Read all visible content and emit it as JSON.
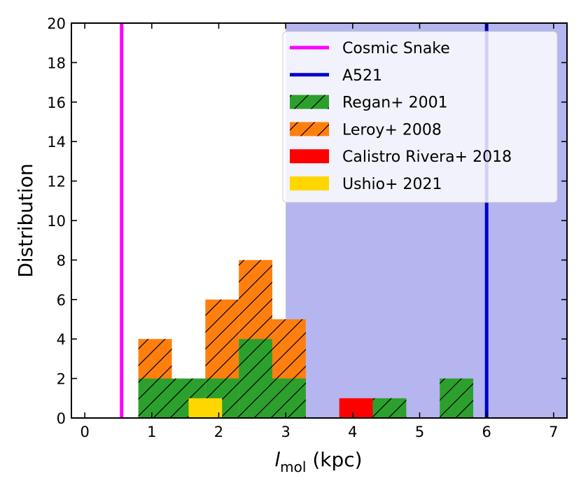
{
  "chart_data": {
    "type": "bar",
    "title": "",
    "xlabel": {
      "main": "l",
      "sub": "mol",
      "rest": " (kpc)"
    },
    "ylabel": "Distribution",
    "xlim": [
      -0.2,
      7.2
    ],
    "ylim": [
      0,
      20
    ],
    "xticks": [
      0,
      1,
      2,
      3,
      4,
      5,
      6,
      7
    ],
    "yticks": [
      0,
      2,
      4,
      6,
      8,
      10,
      12,
      14,
      16,
      18,
      20
    ],
    "bin_width": 0.5,
    "shaded_region": {
      "x_min": 3.0,
      "x_max": 7.2,
      "color": "#6b6be0",
      "opacity": 0.5
    },
    "vlines": [
      {
        "name": "Cosmic Snake",
        "x": 0.55,
        "color": "#ff00ff"
      },
      {
        "name": "A521",
        "x": 6.0,
        "color": "#0000cc"
      }
    ],
    "series": [
      {
        "name": "Leroy+ 2008",
        "color": "#ff7f0e",
        "hatch": true,
        "bars": [
          {
            "x": 0.8,
            "value": 4
          },
          {
            "x": 1.8,
            "value": 6
          },
          {
            "x": 2.3,
            "value": 8
          },
          {
            "x": 2.8,
            "value": 5
          }
        ]
      },
      {
        "name": "Regan+ 2001",
        "color": "#2ca02c",
        "hatch": true,
        "bars": [
          {
            "x": 0.8,
            "value": 2
          },
          {
            "x": 1.3,
            "value": 2
          },
          {
            "x": 1.8,
            "value": 2
          },
          {
            "x": 2.3,
            "value": 4
          },
          {
            "x": 2.8,
            "value": 2
          },
          {
            "x": 4.3,
            "value": 1
          },
          {
            "x": 5.3,
            "value": 2
          }
        ]
      },
      {
        "name": "Calistro Rivera+ 2018",
        "color": "#ff0000",
        "hatch": false,
        "bars": [
          {
            "x": 3.8,
            "value": 1
          }
        ]
      },
      {
        "name": "Ushio+ 2021",
        "color": "#ffd700",
        "hatch": false,
        "bars": [
          {
            "x": 1.55,
            "value": 1
          }
        ]
      }
    ],
    "legend": {
      "location": "top-right",
      "entries": [
        {
          "label": "Cosmic Snake",
          "kind": "line",
          "color": "#ff00ff"
        },
        {
          "label": "A521",
          "kind": "line",
          "color": "#0000cc"
        },
        {
          "label": "Regan+ 2001",
          "kind": "patch",
          "color": "#2ca02c",
          "hatch": true
        },
        {
          "label": "Leroy+ 2008",
          "kind": "patch",
          "color": "#ff7f0e",
          "hatch": true
        },
        {
          "label": "Calistro Rivera+ 2018",
          "kind": "patch",
          "color": "#ff0000",
          "hatch": false
        },
        {
          "label": "Ushio+ 2021",
          "kind": "patch",
          "color": "#ffd700",
          "hatch": false
        }
      ]
    }
  }
}
